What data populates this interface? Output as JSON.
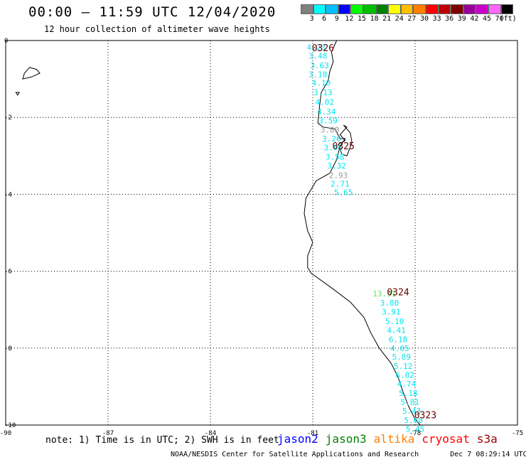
{
  "header": {
    "title": "00:00 – 11:59 UTC 12/04/2020",
    "subtitle": "12 hour collection of altimeter wave heights"
  },
  "color_scale": {
    "colors": [
      "#808080",
      "#00ffff",
      "#00c0ff",
      "#0000ff",
      "#00ff00",
      "#00c000",
      "#008000",
      "#ffff00",
      "#ffc000",
      "#ff8000",
      "#ff0000",
      "#c00000",
      "#800000",
      "#990099",
      "#cc00cc",
      "#ff66ff",
      "#000000"
    ],
    "labels": [
      "3",
      "6",
      "9",
      "12",
      "15",
      "18",
      "21",
      "24",
      "27",
      "30",
      "33",
      "36",
      "39",
      "42",
      "45",
      "70",
      "(ft)"
    ]
  },
  "map": {
    "x_ticks": [
      "-90",
      "-87",
      "-84",
      "-81",
      "-78",
      "-75"
    ],
    "y_ticks": [
      "0",
      "-2",
      "-4",
      "-6",
      "-8",
      "-10"
    ],
    "xlim": [
      -90,
      -75
    ],
    "ylim": [
      -10,
      0
    ],
    "pass_labels": [
      {
        "text": "0326",
        "lon": -80.7,
        "lat": -0.2
      },
      {
        "text": "0325",
        "lon": -80.1,
        "lat": -2.75
      },
      {
        "text": "0324",
        "lon": -78.5,
        "lat": -6.55
      },
      {
        "text": "0323",
        "lon": -77.7,
        "lat": -9.75
      }
    ],
    "wave_heights": [
      {
        "v": "4.23",
        "lon": -80.9,
        "lat": -0.18,
        "c": "#00e5ee"
      },
      {
        "v": "3.48",
        "lon": -80.85,
        "lat": -0.4,
        "c": "#00e5ee"
      },
      {
        "v": "3.63",
        "lon": -80.8,
        "lat": -0.65,
        "c": "#00e5ee"
      },
      {
        "v": "3.18",
        "lon": -80.85,
        "lat": -0.88,
        "c": "#00e5ee"
      },
      {
        "v": "4.10",
        "lon": -80.75,
        "lat": -1.1,
        "c": "#00e5ee"
      },
      {
        "v": "3.13",
        "lon": -80.7,
        "lat": -1.35,
        "c": "#00e5ee"
      },
      {
        "v": "4.02",
        "lon": -80.65,
        "lat": -1.6,
        "c": "#00e5ee"
      },
      {
        "v": "4.34",
        "lon": -80.6,
        "lat": -1.85,
        "c": "#00e5ee"
      },
      {
        "v": "3.59",
        "lon": -80.55,
        "lat": -2.08,
        "c": "#00e5ee"
      },
      {
        "v": "3.00",
        "lon": -80.5,
        "lat": -2.32,
        "c": "#999999"
      },
      {
        "v": "3.26",
        "lon": -80.45,
        "lat": -2.55,
        "c": "#00e5ee"
      },
      {
        "v": "3.06",
        "lon": -80.4,
        "lat": -2.78,
        "c": "#00e5ee"
      },
      {
        "v": "3.58",
        "lon": -80.35,
        "lat": -3.02,
        "c": "#00e5ee"
      },
      {
        "v": "3.32",
        "lon": -80.3,
        "lat": -3.25,
        "c": "#00e5ee"
      },
      {
        "v": "2.93",
        "lon": -80.25,
        "lat": -3.5,
        "c": "#999999"
      },
      {
        "v": "2.71",
        "lon": -80.2,
        "lat": -3.72,
        "c": "#00e5ee"
      },
      {
        "v": "5.65",
        "lon": -80.1,
        "lat": -3.95,
        "c": "#00e5ee"
      },
      {
        "v": "13.91",
        "lon": -78.9,
        "lat": -6.58,
        "c": "#66dd66"
      },
      {
        "v": "3.80",
        "lon": -78.75,
        "lat": -6.82,
        "c": "#00e5ee"
      },
      {
        "v": "3.91",
        "lon": -78.7,
        "lat": -7.05,
        "c": "#00e5ee"
      },
      {
        "v": "5.10",
        "lon": -78.6,
        "lat": -7.3,
        "c": "#00e5ee"
      },
      {
        "v": "4.41",
        "lon": -78.55,
        "lat": -7.53,
        "c": "#00e5ee"
      },
      {
        "v": "6.18",
        "lon": -78.5,
        "lat": -7.77,
        "c": "#00e5ee"
      },
      {
        "v": "4.05",
        "lon": -78.45,
        "lat": -8.0,
        "c": "#00e5ee"
      },
      {
        "v": "5.89",
        "lon": -78.4,
        "lat": -8.23,
        "c": "#00e5ee"
      },
      {
        "v": "5.12",
        "lon": -78.35,
        "lat": -8.47,
        "c": "#00e5ee"
      },
      {
        "v": "6.02",
        "lon": -78.3,
        "lat": -8.7,
        "c": "#00e5ee"
      },
      {
        "v": "4.74",
        "lon": -78.25,
        "lat": -8.93,
        "c": "#00e5ee"
      },
      {
        "v": "5.18",
        "lon": -78.2,
        "lat": -9.17,
        "c": "#00e5ee"
      },
      {
        "v": "5.81",
        "lon": -78.15,
        "lat": -9.4,
        "c": "#00e5ee"
      },
      {
        "v": "5.43",
        "lon": -78.1,
        "lat": -9.63,
        "c": "#00e5ee"
      },
      {
        "v": "5.68",
        "lon": -78.05,
        "lat": -9.87,
        "c": "#00e5ee"
      },
      {
        "v": "5.45",
        "lon": -78.0,
        "lat": -10.1,
        "c": "#00e5ee"
      }
    ],
    "coastline": [
      [
        -80.3,
        0.0
      ],
      [
        -80.45,
        -0.3
      ],
      [
        -80.4,
        -0.55
      ],
      [
        -80.5,
        -0.8
      ],
      [
        -80.55,
        -1.05
      ],
      [
        -80.75,
        -1.35
      ],
      [
        -80.8,
        -1.7
      ],
      [
        -80.85,
        -2.15
      ],
      [
        -80.7,
        -2.25
      ],
      [
        -80.35,
        -2.3
      ],
      [
        -80.2,
        -2.55
      ],
      [
        -80.05,
        -2.55
      ],
      [
        -80.2,
        -2.75
      ],
      [
        -80.3,
        -3.1
      ],
      [
        -80.5,
        -3.45
      ],
      [
        -80.9,
        -3.65
      ],
      [
        -81.2,
        -4.1
      ],
      [
        -81.25,
        -4.5
      ],
      [
        -81.15,
        -4.95
      ],
      [
        -81.0,
        -5.25
      ],
      [
        -81.15,
        -5.6
      ],
      [
        -81.15,
        -5.9
      ],
      [
        -81.05,
        -6.05
      ],
      [
        -80.5,
        -6.4
      ],
      [
        -79.9,
        -6.8
      ],
      [
        -79.5,
        -7.2
      ],
      [
        -79.3,
        -7.6
      ],
      [
        -79.05,
        -8.0
      ],
      [
        -78.7,
        -8.4
      ],
      [
        -78.5,
        -8.75
      ],
      [
        -78.35,
        -9.15
      ],
      [
        -78.2,
        -9.5
      ],
      [
        -78.0,
        -9.85
      ],
      [
        -77.85,
        -10.0
      ]
    ],
    "gulf_outline": [
      [
        -80.1,
        -2.2
      ],
      [
        -79.9,
        -2.4
      ],
      [
        -79.85,
        -2.65
      ],
      [
        -80.0,
        -3.0
      ],
      [
        -80.15,
        -2.95
      ],
      [
        -80.25,
        -2.7
      ],
      [
        -80.05,
        -2.6
      ],
      [
        -80.2,
        -2.45
      ],
      [
        -80.0,
        -2.25
      ],
      [
        -80.1,
        -2.2
      ]
    ],
    "islands": [
      [
        [
          -89.3,
          -0.7
        ],
        [
          -89.1,
          -0.75
        ],
        [
          -89.0,
          -0.85
        ],
        [
          -89.25,
          -0.95
        ],
        [
          -89.5,
          -1.0
        ],
        [
          -89.45,
          -0.85
        ],
        [
          -89.3,
          -0.7
        ]
      ],
      [
        [
          -89.7,
          -1.35
        ],
        [
          -89.6,
          -1.35
        ],
        [
          -89.65,
          -1.42
        ],
        [
          -89.7,
          -1.35
        ]
      ]
    ]
  },
  "note": "note: 1) Time is in UTC; 2) SWH is in feet",
  "satellites": [
    {
      "name": "jason2",
      "color": "#0000ff"
    },
    {
      "name": "jason3",
      "color": "#008000"
    },
    {
      "name": "altika",
      "color": "#ff8000"
    },
    {
      "name": "cryosat",
      "color": "#ff0000"
    },
    {
      "name": "s3a",
      "color": "#990000"
    }
  ],
  "footer": {
    "credit": "NOAA/NESDIS Center for Satellite Applications and Research",
    "timestamp": "Dec  7 08:29:14 UTC 2020"
  }
}
